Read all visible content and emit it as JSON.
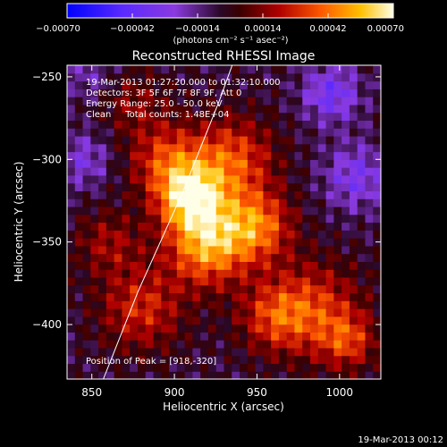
{
  "chart_data": {
    "type": "heatmap",
    "title": "Reconstructed RHESSI Image",
    "xlabel": "Heliocentric X (arcsec)",
    "ylabel": "Heliocentric Y (arcsec)",
    "xlim": [
      835,
      1025
    ],
    "ylim": [
      -433,
      -243
    ],
    "x_ticks": [
      850,
      900,
      950,
      1000
    ],
    "y_ticks": [
      -400,
      -350,
      -300,
      -250
    ],
    "colorbar": {
      "range": [
        -0.0007,
        0.0007
      ],
      "tick_values": [
        -0.0007,
        -0.00042,
        -0.00014,
        0.00014,
        0.00042,
        0.0007
      ],
      "tick_labels": [
        "-0.00070",
        "-0.00042",
        "-0.00014",
        "0.00014",
        "0.00042",
        "0.00070"
      ],
      "unit_label": "(photons cm⁻² s⁻¹ asec⁻²)"
    },
    "annotations": [
      "19-Mar-2013 01:27:20.000 to 01:32:10.000",
      "Detectors: 3F 5F 6F 7F 8F 9F, Att 0",
      "Energy Range: 25.0 - 50.0 keV",
      "Clean     Total counts: 1.48E+04"
    ],
    "peak_label": "Position of Peak = [918,-320]",
    "limb_curve": {
      "x": [
        857,
        878,
        905,
        927,
        935
      ],
      "y": [
        -433,
        -380,
        -320,
        -265,
        -243
      ]
    },
    "sources": [
      {
        "x": 910,
        "y": -323,
        "sigma": 14,
        "amp": 0.00062
      },
      {
        "x": 920,
        "y": -352,
        "sigma": 17,
        "amp": 0.00055
      },
      {
        "x": 950,
        "y": -340,
        "sigma": 15,
        "amp": 0.00045
      },
      {
        "x": 935,
        "y": -300,
        "sigma": 18,
        "amp": 0.0004
      },
      {
        "x": 895,
        "y": -300,
        "sigma": 16,
        "amp": 0.00035
      },
      {
        "x": 880,
        "y": -390,
        "sigma": 18,
        "amp": 0.00032
      },
      {
        "x": 985,
        "y": -390,
        "sigma": 20,
        "amp": 0.00034
      },
      {
        "x": 1005,
        "y": -410,
        "sigma": 12,
        "amp": 0.0003
      },
      {
        "x": 860,
        "y": -350,
        "sigma": 14,
        "amp": 0.00022
      },
      {
        "x": 960,
        "y": -395,
        "sigma": 15,
        "amp": 0.0003
      },
      {
        "x": 875,
        "y": -265,
        "sigma": 14,
        "amp": 0.00018
      },
      {
        "x": 995,
        "y": -260,
        "sigma": 12,
        "amp": -0.0003
      },
      {
        "x": 1010,
        "y": -310,
        "sigma": 14,
        "amp": -0.00025
      },
      {
        "x": 845,
        "y": -300,
        "sigma": 12,
        "amp": -0.0002
      },
      {
        "x": 850,
        "y": -250,
        "sigma": 10,
        "amp": -0.00015
      }
    ]
  },
  "footer": {
    "date": "19-Mar-2013 00:12"
  }
}
